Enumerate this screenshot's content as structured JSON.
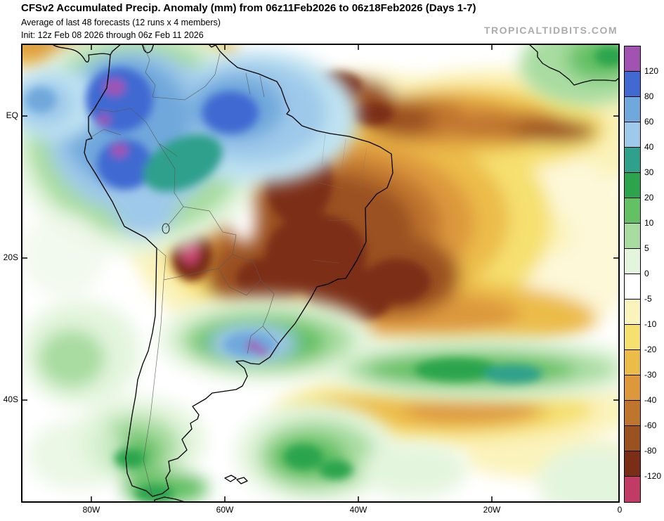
{
  "header": {
    "title": "CFSv2 Accumulated Precip. Anomaly (mm) from 06z11Feb2026 to 06z18Feb2026 (Days 1-7)",
    "subtitle": "Average of last 48 forecasts (12 runs x 4 members)",
    "init_line": "Init: 12z Feb 08 2026 through 06z Feb 11 2026",
    "watermark": "TROPICALTIDBITS.COM"
  },
  "axes": {
    "left": [
      "EQ",
      "20S",
      "40S"
    ],
    "bottom": [
      "80W",
      "60W",
      "40W",
      "20W",
      "0"
    ]
  },
  "colorbar": {
    "labels": [
      "120",
      "80",
      "60",
      "40",
      "30",
      "20",
      "10",
      "5",
      "0",
      "-5",
      "-10",
      "-20",
      "-30",
      "-40",
      "-60",
      "-80",
      "-120"
    ],
    "colors": [
      "#A252B0",
      "#4169D2",
      "#6FA8DC",
      "#9FC9EA",
      "#2FA08C",
      "#2CA44E",
      "#63C063",
      "#A8DCA0",
      "#E4F5DE",
      "#FFFFFF",
      "#FBF3BC",
      "#F6E070",
      "#ECBC48",
      "#DD983C",
      "#BF752E",
      "#9B5120",
      "#7C2D15",
      "#C23A66"
    ]
  },
  "chart_data": {
    "type": "heatmap",
    "title": "CFSv2 Accumulated Precip. Anomaly (mm), Days 1-7",
    "units": "mm",
    "domain": {
      "lon": [
        "90W",
        "0"
      ],
      "lat": [
        "10N",
        "55S"
      ]
    },
    "levels": [
      -120,
      -80,
      -60,
      -40,
      -30,
      -20,
      -10,
      -5,
      0,
      5,
      10,
      20,
      30,
      40,
      60,
      80,
      120
    ],
    "legend_position": "right",
    "features": [
      {
        "area": "Colombia / Ecuador / N Peru / W Venezuela",
        "anomaly_mm": "+20 to +120",
        "tone": "blue with purple cores"
      },
      {
        "area": "N-central Amazon / Guyanas",
        "anomaly_mm": "+20 to +80",
        "tone": "cyan-blue"
      },
      {
        "area": "Central and eastern Brazil interior",
        "anomaly_mm": "-40 to -120",
        "tone": "dark brown / dark red"
      },
      {
        "area": "Peru-Bolivia Altiplano spot",
        "anomaly_mm": "below -120",
        "tone": "dark red with magenta core"
      },
      {
        "area": "Uruguay / S Brazil / NE Argentina band",
        "anomaly_mm": "+20 to +120",
        "tone": "green-blue with purple specks"
      },
      {
        "area": "South Atlantic band near 35S",
        "anomaly_mm": "+10 to +30",
        "tone": "green"
      },
      {
        "area": "South Atlantic band near 45S",
        "anomaly_mm": "-10 to -30",
        "tone": "yellow-gold"
      },
      {
        "area": "Tropical North Atlantic band",
        "anomaly_mm": "-20 to -60",
        "tone": "orange-brown"
      },
      {
        "area": "Patagonia / S Chile",
        "anomaly_mm": "+5 to +30",
        "tone": "green"
      },
      {
        "area": "Gulf of Guinea / W Africa corner",
        "anomaly_mm": "+5 to +20",
        "tone": "green"
      }
    ]
  }
}
